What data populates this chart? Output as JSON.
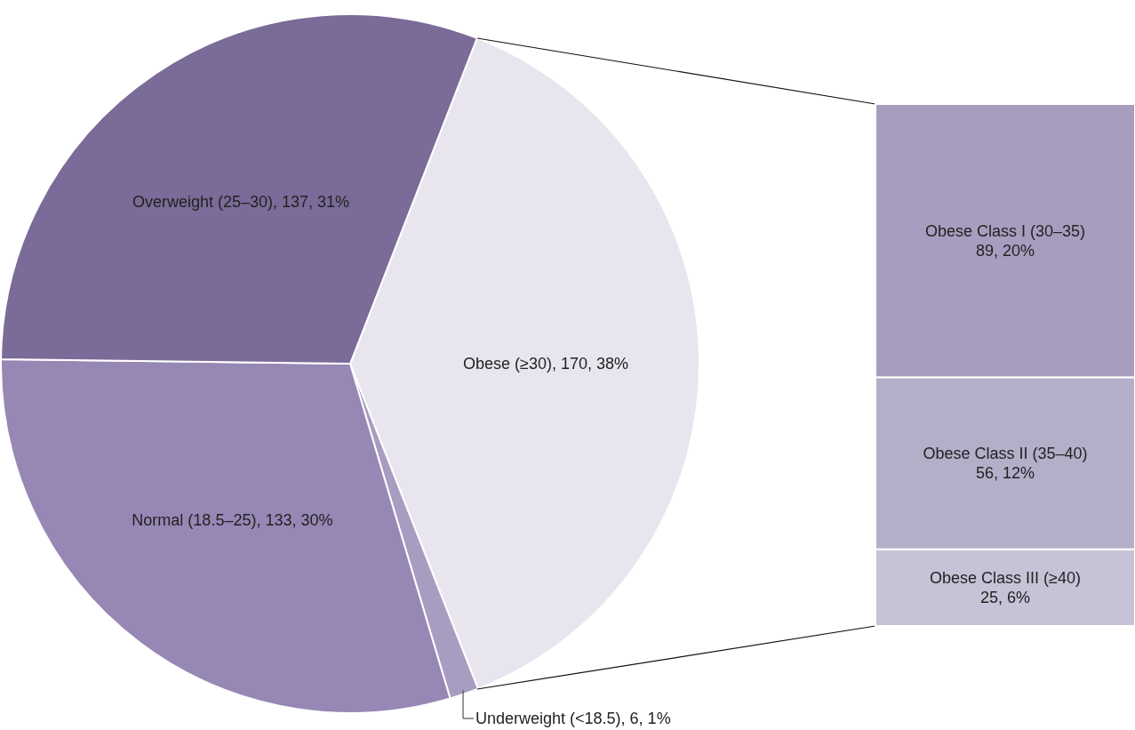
{
  "chart_data": [
    {
      "type": "pie",
      "categories": [
        "Obese (≥30)",
        "Underweight (<18.5)",
        "Normal (18.5–25)",
        "Overweight (25–30)"
      ],
      "values": [
        170,
        6,
        133,
        137
      ],
      "colors": [
        "#e8e5ee",
        "#a89cc0",
        "#9787b5",
        "#7b6b98"
      ],
      "value_labels": [
        "170, 38%",
        "6, 1%",
        "133, 30%",
        "137, 31%"
      ]
    },
    {
      "type": "bar",
      "stacked": true,
      "categories": [
        null
      ],
      "tick_labels": false,
      "series": [
        {
          "name": "Obese Class III (≥40)",
          "color": "#c8c2d7",
          "values": [
            25
          ],
          "value_labels": [
            "25, 6%"
          ]
        },
        {
          "name": "Obese Class II (35–40)",
          "color": "#b5aec9",
          "values": [
            56
          ],
          "value_labels": [
            "56, 12%"
          ]
        },
        {
          "name": "Obese Class I (30–35)",
          "color": "#a89dbf",
          "values": [
            89
          ],
          "value_labels": [
            "89, 20%"
          ]
        }
      ]
    }
  ]
}
